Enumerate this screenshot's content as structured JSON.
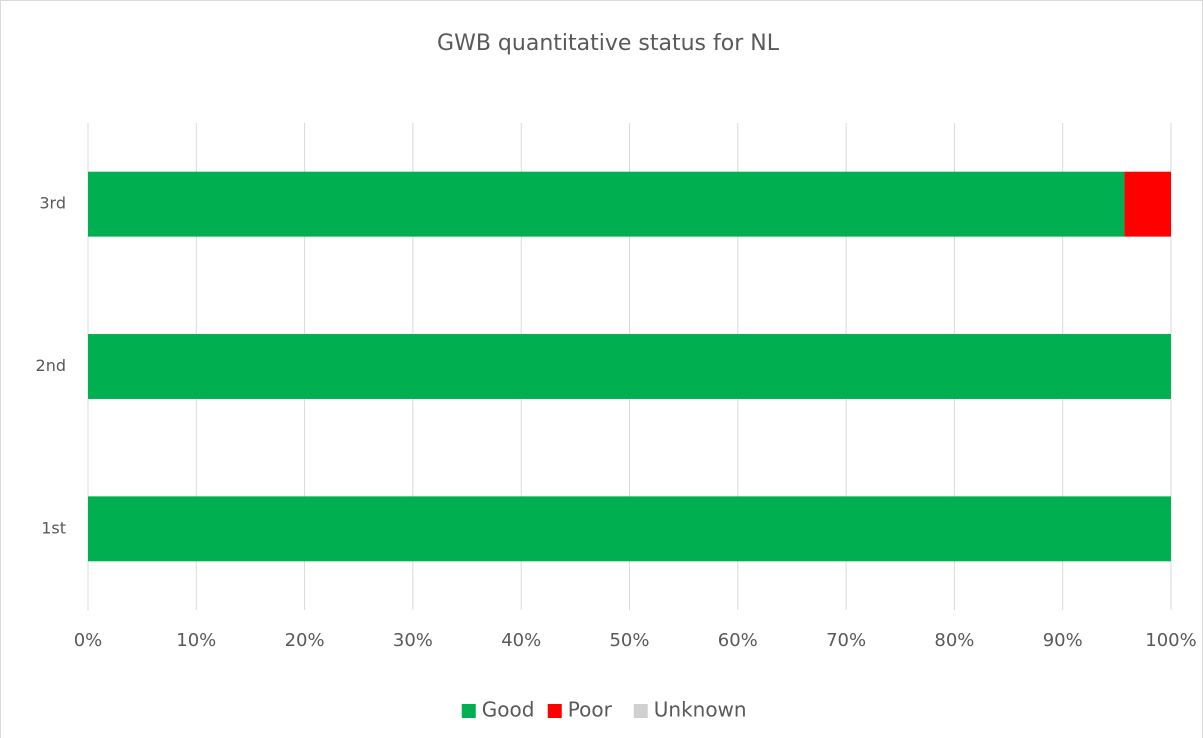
{
  "chart_data": {
    "type": "stacked_barh",
    "title": "GWB quantitative status for NL",
    "categories": [
      "1st",
      "2nd",
      "3rd"
    ],
    "series": [
      {
        "name": "Good",
        "color": "#00b050",
        "values": [
          100,
          100,
          95.7
        ]
      },
      {
        "name": "Poor",
        "color": "#ff0000",
        "values": [
          0,
          0,
          4.3
        ]
      },
      {
        "name": "Unknown",
        "color": "#d0d0d0",
        "values": [
          0,
          0,
          0
        ]
      }
    ],
    "xlim": [
      0,
      100
    ],
    "xticks": [
      {
        "value": 0,
        "label": "0%"
      },
      {
        "value": 10,
        "label": "10%"
      },
      {
        "value": 20,
        "label": "20%"
      },
      {
        "value": 30,
        "label": "30%"
      },
      {
        "value": 40,
        "label": "40%"
      },
      {
        "value": 50,
        "label": "50%"
      },
      {
        "value": 60,
        "label": "60%"
      },
      {
        "value": 70,
        "label": "70%"
      },
      {
        "value": 80,
        "label": "80%"
      },
      {
        "value": 90,
        "label": "90%"
      },
      {
        "value": 100,
        "label": "100%"
      }
    ],
    "grid": true,
    "legend": "bottom"
  }
}
